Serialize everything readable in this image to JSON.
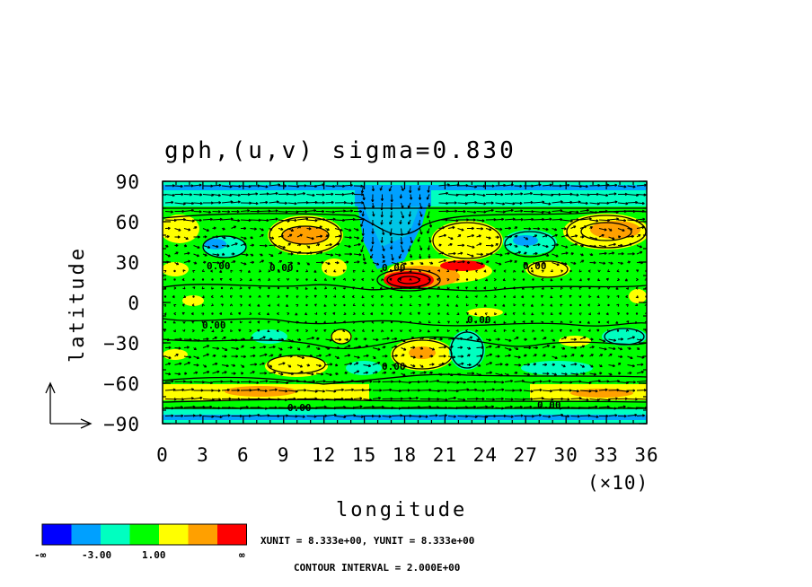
{
  "chart_data": {
    "type": "heatmap",
    "title": "gph,(u,v) sigma=0.830",
    "xlabel": "longitude",
    "ylabel": "latitude",
    "x_multiplier_label": "(×10)",
    "xlim": [
      0,
      36
    ],
    "ylim": [
      -90,
      90
    ],
    "x_ticks": [
      "0",
      "3",
      "6",
      "9",
      "12",
      "15",
      "18",
      "21",
      "24",
      "27",
      "30",
      "33",
      "36"
    ],
    "y_ticks": [
      "90",
      "60",
      "30",
      "0",
      "-30",
      "-60",
      "-90"
    ],
    "contour_labels": [
      "0.00",
      "0.00",
      "0.00",
      "0.00",
      "0.00",
      "0.00",
      "0.00",
      "0.00",
      "0.00"
    ],
    "colorbar": {
      "colors": [
        "#0000ff",
        "#00a0ff",
        "#00ffc0",
        "#00ff00",
        "#ffff00",
        "#ffa000",
        "#ff0000"
      ],
      "labels": [
        "-∞",
        "-3.00",
        "1.00",
        "∞"
      ]
    },
    "info_lines": [
      "XUNIT = 8.333e+00, YUNIT = 8.333e+00",
      "CONTOUR INTERVAL = 2.000E+00"
    ]
  }
}
